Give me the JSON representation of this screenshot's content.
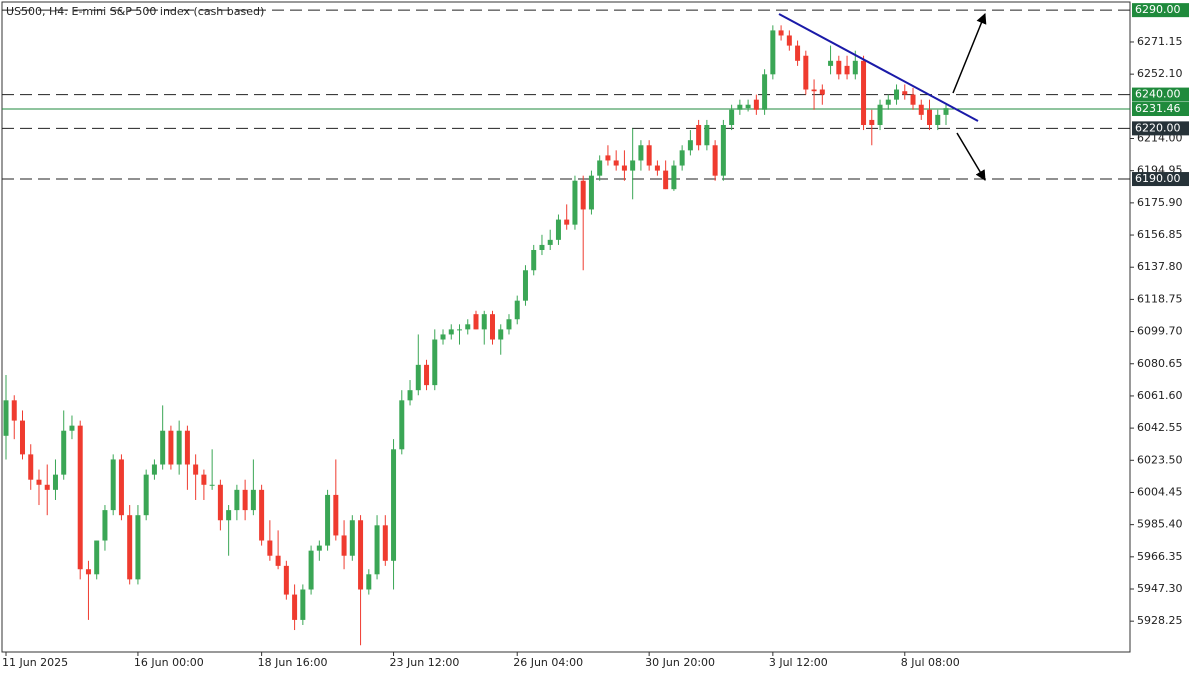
{
  "chart_data": {
    "type": "candlestick",
    "title": "US500, H4:  E-mini S&P 500 index (cash based)",
    "categories": [
      "11 Jun 2025",
      null,
      null,
      null,
      null,
      null,
      null,
      null,
      null,
      null,
      null,
      null,
      null,
      null,
      null,
      null,
      "16 Jun 00:00",
      null,
      null,
      null,
      null,
      null,
      null,
      null,
      null,
      null,
      null,
      null,
      null,
      null,
      null,
      "18 Jun 16:00",
      null,
      null,
      null,
      null,
      null,
      null,
      null,
      null,
      null,
      null,
      null,
      null,
      null,
      null,
      null,
      "23 Jun 12:00",
      null,
      null,
      null,
      null,
      null,
      null,
      null,
      null,
      null,
      null,
      null,
      null,
      null,
      null,
      "26 Jun 04:00",
      null,
      null,
      null,
      null,
      null,
      null,
      null,
      null,
      null,
      null,
      null,
      null,
      null,
      null,
      null,
      "30 Jun 20:00",
      null,
      null,
      null,
      null,
      null,
      null,
      null,
      null,
      null,
      null,
      null,
      null,
      null,
      null,
      "3 Jul 12:00",
      null,
      null,
      null,
      null,
      null,
      null,
      null,
      null,
      null,
      null,
      null,
      null,
      null,
      null,
      null,
      "8 Jul 08:00",
      null,
      null,
      null,
      null,
      null
    ],
    "open": [
      6038,
      6059,
      6047,
      6027,
      6012,
      6009,
      6006,
      6015,
      6041,
      6044,
      5959,
      5956,
      5976,
      5994,
      6024,
      5991,
      5953,
      5991,
      6015,
      6021,
      6041,
      6021,
      6041,
      6021,
      6015,
      6009,
      6009,
      5988,
      5994,
      6006,
      5994,
      6006,
      5976,
      5967,
      5961,
      5944,
      5929,
      5947,
      5970,
      5973,
      6003,
      5979,
      5967,
      5988,
      5947,
      5956,
      5985,
      5964,
      6030,
      6059,
      6065,
      6080,
      6068,
      6095,
      6098,
      6101,
      6101,
      6110,
      6101,
      6110,
      6095,
      6101,
      6107,
      6118,
      6136,
      6148,
      6151,
      6154,
      6166,
      6163,
      6189,
      6172,
      6192,
      6204,
      6201,
      6198,
      6195,
      6201,
      6210,
      6198,
      6195,
      6184,
      6198,
      6207,
      6222,
      6210,
      6210,
      6192,
      6222,
      6231,
      6232,
      6237,
      6231,
      6252,
      6278,
      6275,
      6269,
      6263,
      6243,
      6243,
      6257,
      6260,
      6257,
      6252,
      6260,
      6225,
      6222,
      6234,
      6237,
      6242,
      6240,
      6234,
      6231,
      6222,
      6228
    ],
    "high": [
      6074,
      6062,
      6053,
      6033,
      6018,
      6021,
      6024,
      6053,
      6050,
      6047,
      5964,
      5976,
      5997,
      6027,
      6027,
      5997,
      5997,
      6018,
      6024,
      6056,
      6044,
      6047,
      6044,
      6027,
      6018,
      6030,
      6012,
      5997,
      6009,
      6012,
      6024,
      6009,
      5988,
      5982,
      5964,
      5950,
      5950,
      5973,
      5976,
      6006,
      6024,
      5988,
      5991,
      5991,
      5959,
      5991,
      5991,
      6036,
      6065,
      6071,
      6098,
      6083,
      6101,
      6101,
      6104,
      6104,
      6107,
      6112,
      6112,
      6112,
      6104,
      6110,
      6121,
      6139,
      6151,
      6157,
      6160,
      6169,
      6175,
      6192,
      6192,
      6195,
      6204,
      6210,
      6207,
      6207,
      6220,
      6213,
      6213,
      6201,
      6201,
      6201,
      6210,
      6219,
      6225,
      6225,
      6213,
      6225,
      6234,
      6237,
      6237,
      6240,
      6255,
      6281,
      6281,
      6278,
      6272,
      6266,
      6249,
      6246,
      6269,
      6263,
      6263,
      6266,
      6263,
      6231,
      6237,
      6240,
      6246,
      6246,
      6244,
      6237,
      6237,
      6231,
      6234
    ],
    "low": [
      6024,
      6036,
      6024,
      6006,
      5997,
      5991,
      6000,
      6012,
      6036,
      5953,
      5929,
      5953,
      5970,
      5991,
      5988,
      5950,
      5950,
      5988,
      6012,
      6018,
      6018,
      6015,
      6006,
      6000,
      6000,
      6006,
      5982,
      5967,
      5988,
      5988,
      5991,
      5973,
      5964,
      5959,
      5941,
      5923,
      5926,
      5944,
      5964,
      5970,
      5976,
      5959,
      5964,
      5914,
      5944,
      5953,
      5961,
      5947,
      6027,
      6056,
      6062,
      6065,
      6065,
      6092,
      6095,
      6092,
      6098,
      6101,
      6092,
      6092,
      6086,
      6098,
      6104,
      6115,
      6133,
      6145,
      6148,
      6151,
      6160,
      6160,
      6136,
      6169,
      6189,
      6198,
      6195,
      6189,
      6178,
      6195,
      6195,
      6192,
      6184,
      6183,
      6195,
      6204,
      6207,
      6207,
      6189,
      6189,
      6219,
      6228,
      6230,
      6228,
      6228,
      6249,
      6272,
      6266,
      6257,
      6240,
      6231,
      6234,
      6252,
      6249,
      6249,
      6249,
      6219,
      6210,
      6219,
      6231,
      6234,
      6237,
      6231,
      6225,
      6219,
      6219,
      6222
    ],
    "close": [
      6059,
      6047,
      6027,
      6012,
      6009,
      6006,
      6015,
      6041,
      6044,
      5959,
      5956,
      5976,
      5994,
      6024,
      5991,
      5953,
      5991,
      6015,
      6021,
      6041,
      6021,
      6041,
      6021,
      6015,
      6009,
      6009,
      5988,
      5994,
      6006,
      5994,
      6006,
      5976,
      5967,
      5961,
      5944,
      5929,
      5947,
      5970,
      5973,
      6003,
      5979,
      5967,
      5988,
      5947,
      5956,
      5985,
      5964,
      6030,
      6059,
      6065,
      6080,
      6068,
      6095,
      6098,
      6101,
      6101,
      6104,
      6101,
      6110,
      6095,
      6101,
      6107,
      6118,
      6136,
      6148,
      6151,
      6154,
      6166,
      6163,
      6189,
      6172,
      6192,
      6201,
      6201,
      6198,
      6195,
      6201,
      6210,
      6198,
      6195,
      6184,
      6198,
      6207,
      6213,
      6210,
      6222,
      6192,
      6222,
      6231,
      6234,
      6234,
      6231,
      6252,
      6278,
      6275,
      6269,
      6260,
      6243,
      6242,
      6240,
      6260,
      6252,
      6252,
      6260,
      6222,
      6222,
      6234,
      6237,
      6243,
      6240,
      6234,
      6228,
      6222,
      6228,
      6232
    ],
    "up_color": "#3aa655",
    "down_color": "#ef3b2f",
    "ylim": [
      5910,
      6296
    ],
    "yticks": [
      {
        "value": 6271.15,
        "label": "6271.15"
      },
      {
        "value": 6252.1,
        "label": "6252.10"
      },
      {
        "value": 6214,
        "label": "6214.00"
      },
      {
        "value": 6194.95,
        "label": "6194.95"
      },
      {
        "value": 6175.9,
        "label": "6175.90"
      },
      {
        "value": 6156.85,
        "label": "6156.85"
      },
      {
        "value": 6137.8,
        "label": "6137.80"
      },
      {
        "value": 6118.75,
        "label": "6118.75"
      },
      {
        "value": 6099.7,
        "label": "6099.70"
      },
      {
        "value": 6080.65,
        "label": "6080.65"
      },
      {
        "value": 6061.6,
        "label": "6061.60"
      },
      {
        "value": 6042.55,
        "label": "6042.55"
      },
      {
        "value": 6023.5,
        "label": "6023.50"
      },
      {
        "value": 6004.45,
        "label": "6004.45"
      },
      {
        "value": 5985.4,
        "label": "5985.40"
      },
      {
        "value": 5966.35,
        "label": "5966.35"
      },
      {
        "value": 5947.3,
        "label": "5947.30"
      },
      {
        "value": 5928.25,
        "label": "5928.25"
      }
    ],
    "levels": [
      {
        "value": 6290,
        "label": "6290.00",
        "style": "dashed",
        "color": "#222222",
        "label_color": "#1f8a3c"
      },
      {
        "value": 6240,
        "label": "6240.00",
        "style": "dashed",
        "color": "#222222",
        "label_color": "#1f8a3c"
      },
      {
        "value": 6231.46,
        "label": "6231.46",
        "style": "solid",
        "color": "#1f8a3c",
        "label_color": "#1f8a3c"
      },
      {
        "value": 6220,
        "label": "6220.00",
        "style": "dashed",
        "color": "#222222",
        "label_color": "#263238"
      },
      {
        "value": 6190,
        "label": "6190.00",
        "style": "dashed",
        "color": "#222222",
        "label_color": "#263238"
      }
    ]
  }
}
